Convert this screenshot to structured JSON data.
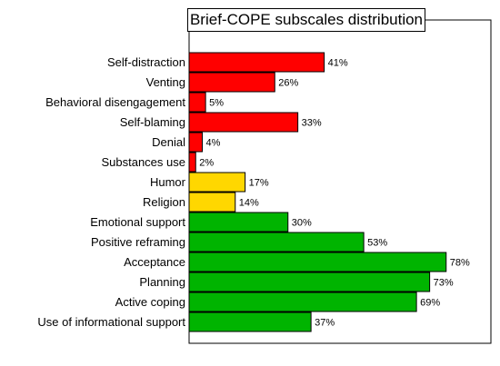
{
  "chart_data": {
    "type": "bar",
    "orientation": "horizontal",
    "title": "Brief-COPE subscales distribution",
    "xlabel": "",
    "ylabel": "",
    "xlim": [
      0,
      80
    ],
    "grid": false,
    "legend": "none",
    "categories": [
      "Self-distraction",
      "Venting",
      "Behavioral disengagement",
      "Self-blaming",
      "Denial",
      "Substances use",
      "Humor",
      "Religion",
      "Emotional support",
      "Positive reframing",
      "Acceptance",
      "Planning",
      "Active coping",
      "Use of informational support"
    ],
    "values": [
      41,
      26,
      5,
      33,
      4,
      2,
      17,
      14,
      30,
      53,
      78,
      73,
      69,
      37
    ],
    "value_labels": [
      "41%",
      "26%",
      "5%",
      "33%",
      "4%",
      "2%",
      "17%",
      "14%",
      "30%",
      "53%",
      "78%",
      "73%",
      "69%",
      "37%"
    ],
    "bar_colors": [
      "#ff0000",
      "#ff0000",
      "#ff0000",
      "#ff0000",
      "#ff0000",
      "#ff0000",
      "#ffd700",
      "#ffd700",
      "#00b400",
      "#00b400",
      "#00b400",
      "#00b400",
      "#00b400",
      "#00b400"
    ]
  }
}
